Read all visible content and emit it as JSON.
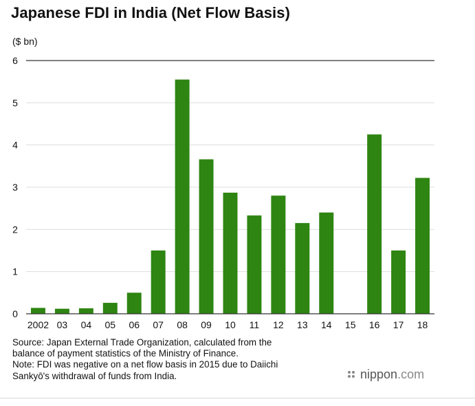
{
  "chart_data": {
    "type": "bar",
    "title": "Japanese FDI in India (Net Flow Basis)",
    "unit_label": "($ bn)",
    "categories": [
      "2002",
      "03",
      "04",
      "05",
      "06",
      "07",
      "08",
      "09",
      "10",
      "11",
      "12",
      "13",
      "14",
      "15",
      "16",
      "17",
      "18"
    ],
    "values": [
      0.14,
      0.12,
      0.13,
      0.26,
      0.5,
      1.5,
      5.55,
      3.66,
      2.87,
      2.33,
      2.8,
      2.15,
      2.4,
      null,
      4.25,
      1.5,
      3.22
    ],
    "yticks": [
      0,
      1,
      2,
      3,
      4,
      5,
      6
    ],
    "ylim": [
      0,
      6
    ],
    "grid": true,
    "bar_color": "#2e8512"
  },
  "notes": {
    "source_line1": "Source: Japan External Trade Organization, calculated from the",
    "source_line2": "balance of payment statistics of the Ministry of Finance.",
    "note_line1": "Note: FDI was negative on a net flow basis in 2015 due to Daiichi",
    "note_line2": "Sankyō's withdrawal of funds from India."
  },
  "brand": {
    "name": "nippon",
    "suffix": ".com",
    "icon": "nippon-logo-dots-icon"
  }
}
